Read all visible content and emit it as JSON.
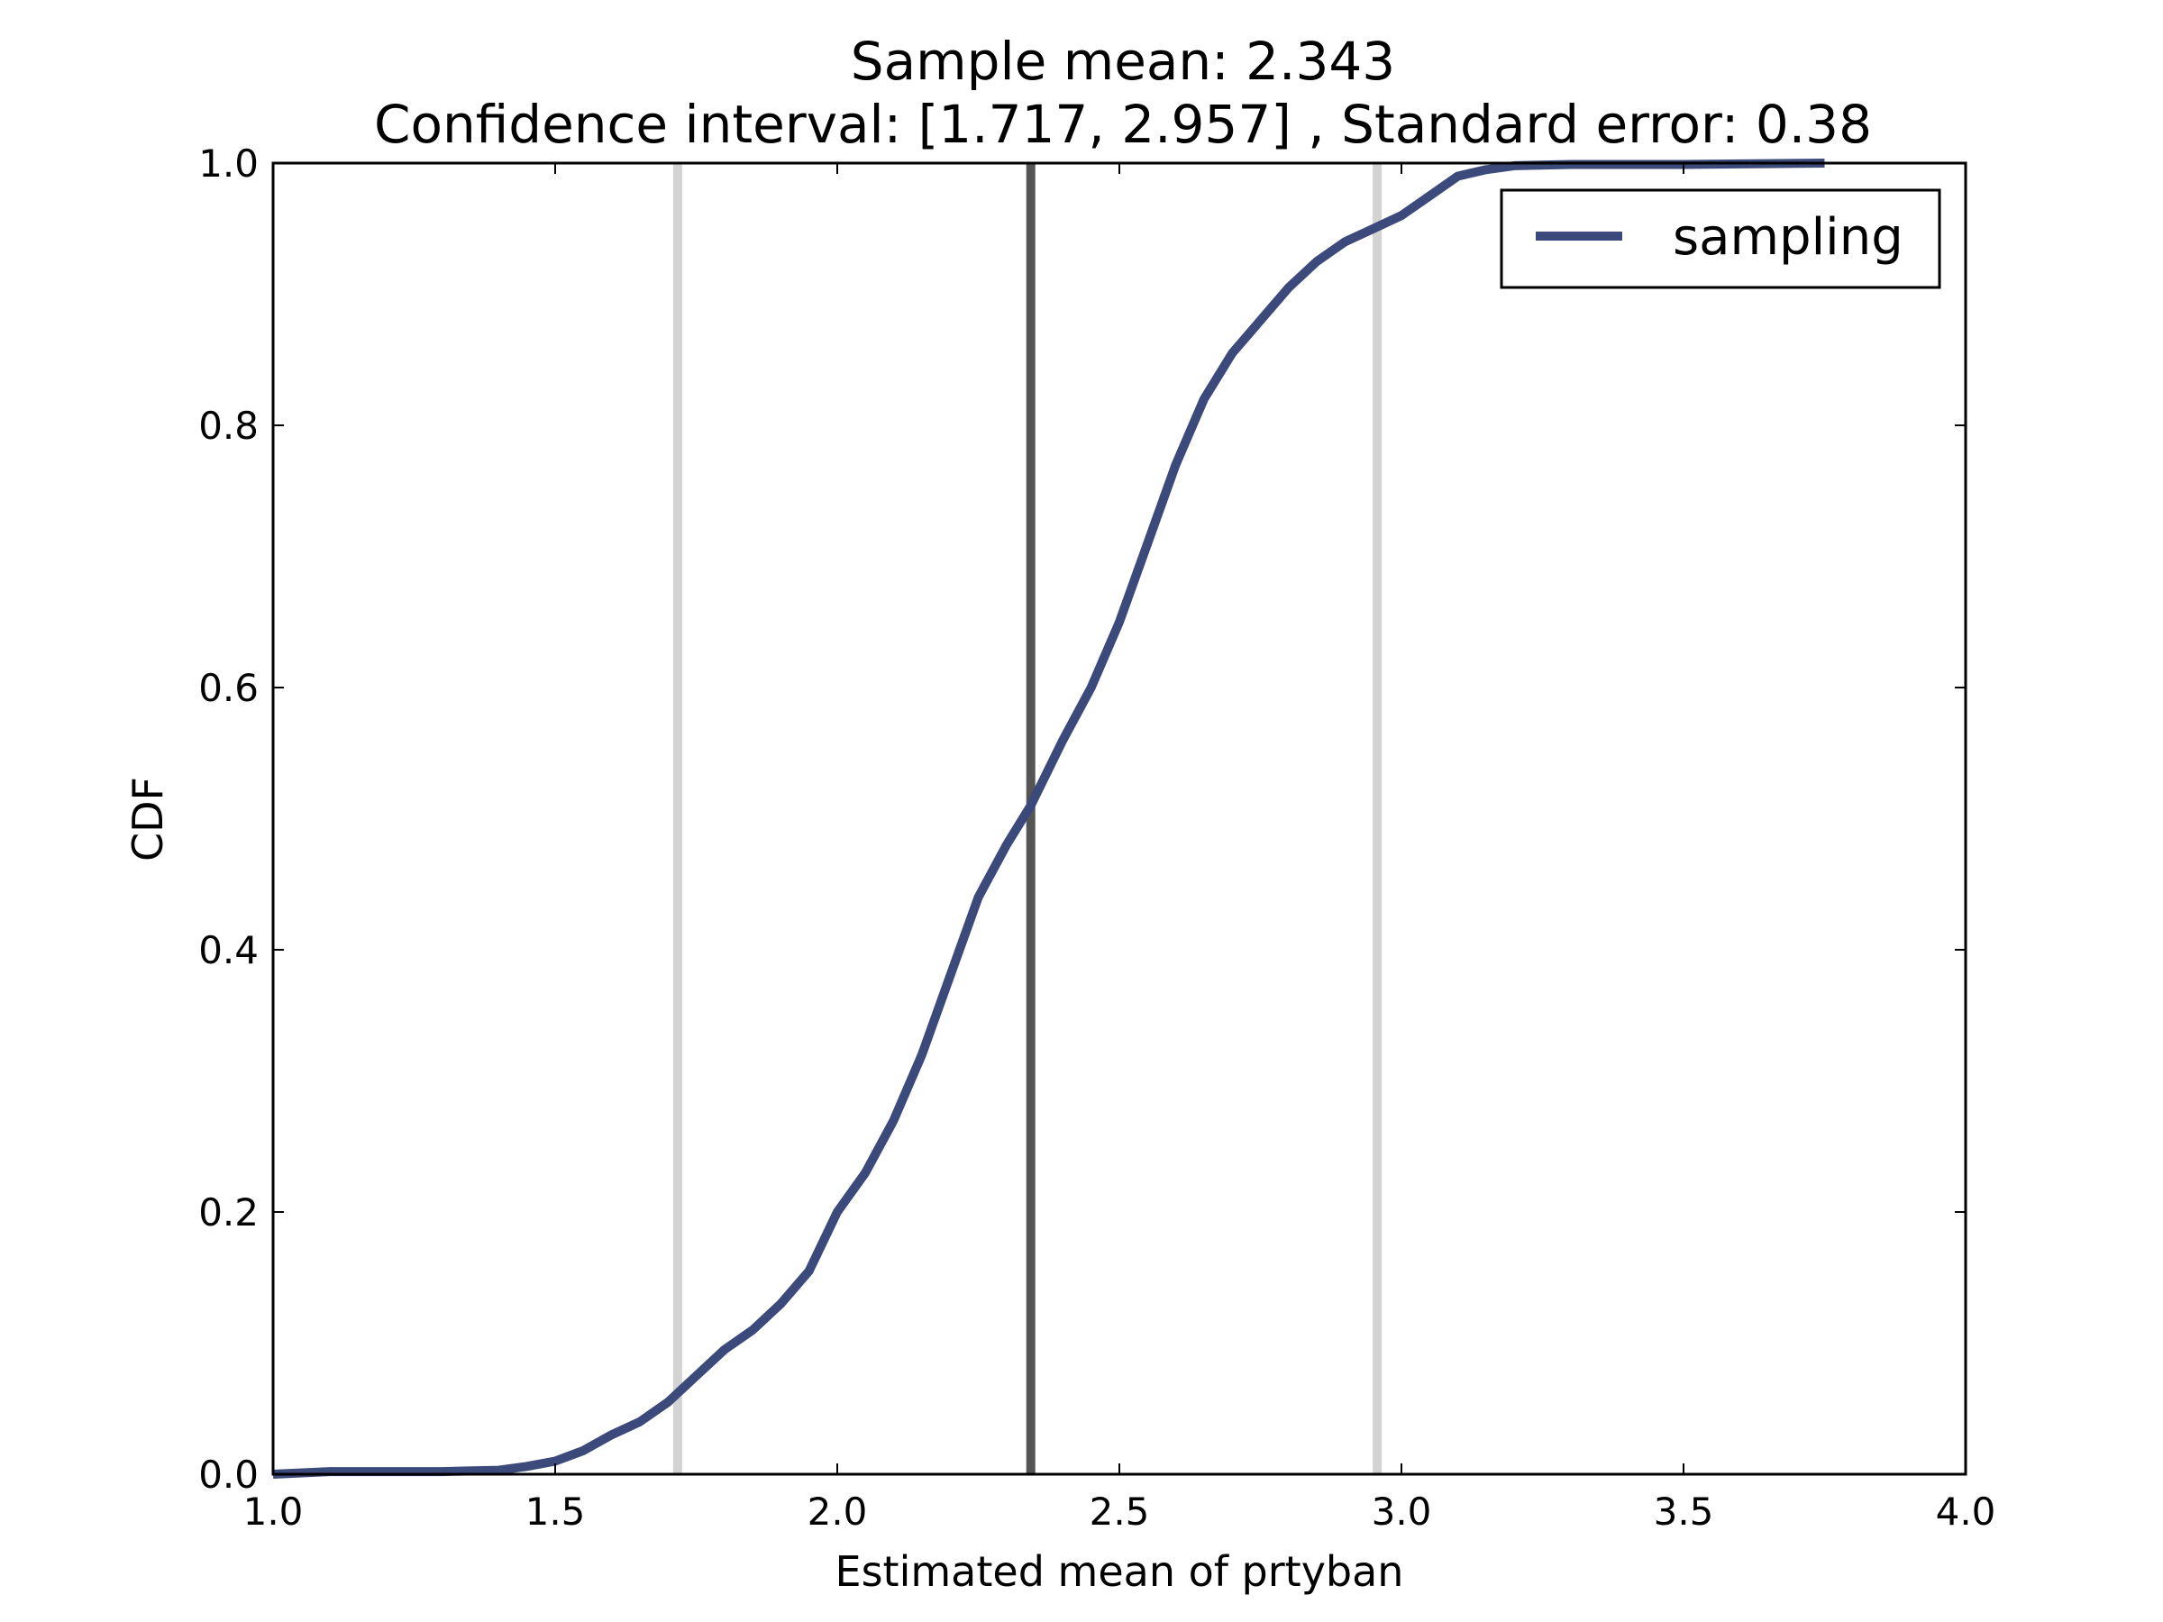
{
  "chart_data": {
    "type": "line",
    "title": "Sample mean: 2.343",
    "subtitle": "Confidence interval: [1.717, 2.957] , Standard error: 0.38",
    "xlabel": "Estimated mean of prtyban",
    "ylabel": "CDF",
    "xlim": [
      1.0,
      4.0
    ],
    "ylim": [
      0.0,
      1.0
    ],
    "xticks": [
      "1.0",
      "1.5",
      "2.0",
      "2.5",
      "3.0",
      "3.5",
      "4.0"
    ],
    "yticks": [
      "0.0",
      "0.2",
      "0.4",
      "0.6",
      "0.8",
      "1.0"
    ],
    "grid": false,
    "legend_position": "top-right",
    "series": [
      {
        "name": "sampling",
        "color": "#3b4a7a",
        "x": [
          1.0,
          1.1,
          1.2,
          1.3,
          1.4,
          1.45,
          1.5,
          1.55,
          1.6,
          1.65,
          1.7,
          1.75,
          1.8,
          1.85,
          1.9,
          1.95,
          2.0,
          2.05,
          2.1,
          2.15,
          2.2,
          2.25,
          2.3,
          2.343,
          2.4,
          2.45,
          2.5,
          2.55,
          2.6,
          2.65,
          2.7,
          2.75,
          2.8,
          2.85,
          2.9,
          2.95,
          3.0,
          3.05,
          3.1,
          3.15,
          3.2,
          3.3,
          3.5,
          3.75
        ],
        "y": [
          0.0,
          0.002,
          0.002,
          0.002,
          0.003,
          0.006,
          0.01,
          0.018,
          0.03,
          0.04,
          0.055,
          0.075,
          0.095,
          0.11,
          0.13,
          0.155,
          0.2,
          0.23,
          0.27,
          0.32,
          0.38,
          0.44,
          0.48,
          0.51,
          0.56,
          0.6,
          0.65,
          0.71,
          0.77,
          0.82,
          0.855,
          0.88,
          0.905,
          0.925,
          0.94,
          0.95,
          0.96,
          0.975,
          0.99,
          0.995,
          0.998,
          0.999,
          0.999,
          1.0
        ]
      }
    ],
    "reference_lines": [
      {
        "x": 1.717,
        "color": "#d3d3d3"
      },
      {
        "x": 2.343,
        "color": "#555555"
      },
      {
        "x": 2.957,
        "color": "#d3d3d3"
      }
    ]
  }
}
